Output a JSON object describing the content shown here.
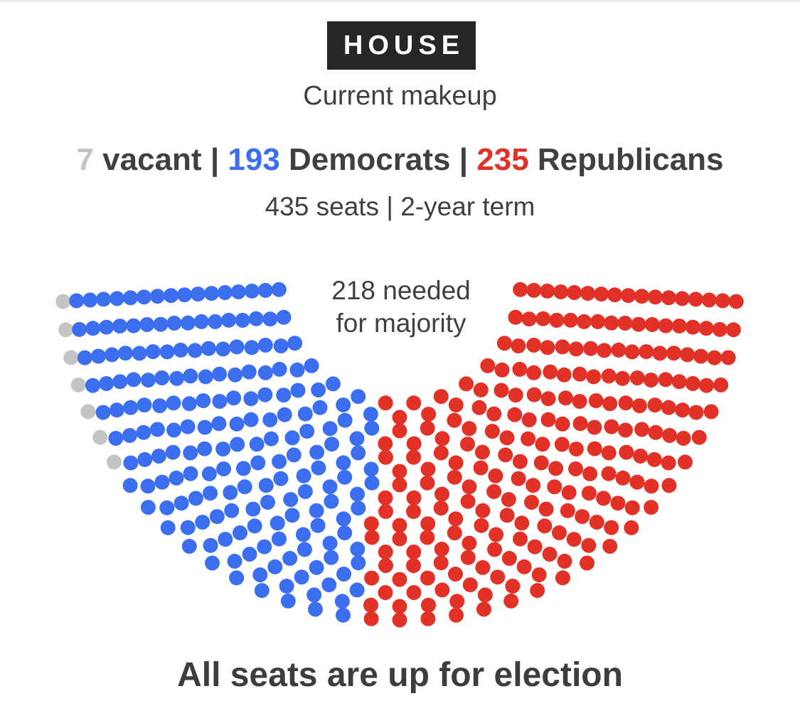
{
  "header": {
    "badge": "HOUSE",
    "subtitle": "Current makeup"
  },
  "summary": {
    "vacant_count": "7",
    "vacant_label": "vacant",
    "separator": "|",
    "dem_count": "193",
    "dem_label": "Democrats",
    "rep_count": "235",
    "rep_label": "Republicans"
  },
  "seats_line": "435 seats | 2-year term",
  "majority_line1": "218 needed",
  "majority_line2": "for majority",
  "footer": "All seats are up for election",
  "colors": {
    "vacant": "#c4c4c4",
    "democrat": "#3c6ff0",
    "republican": "#e23227"
  },
  "chart_data": {
    "type": "parliament",
    "total_seats": 435,
    "majority": 218,
    "series": [
      {
        "name": "vacant",
        "value": 7,
        "color": "#c4c4c4"
      },
      {
        "name": "Democrats",
        "value": 193,
        "color": "#3c6ff0"
      },
      {
        "name": "Republicans",
        "value": 235,
        "color": "#e23227"
      }
    ]
  }
}
